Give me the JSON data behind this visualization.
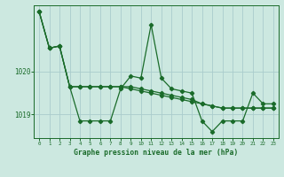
{
  "background_color": "#cce8e0",
  "grid_color": "#aacccc",
  "line_color": "#1a6b2a",
  "title": "Graphe pression niveau de la mer (hPa)",
  "xlim": [
    -0.5,
    23.5
  ],
  "ylim": [
    1018.45,
    1021.55
  ],
  "yticks": [
    1019.0,
    1020.0
  ],
  "xticks": [
    0,
    1,
    2,
    3,
    4,
    5,
    6,
    7,
    8,
    9,
    10,
    11,
    12,
    13,
    14,
    15,
    16,
    17,
    18,
    19,
    20,
    21,
    22,
    23
  ],
  "series1_x": [
    0,
    1,
    2,
    3,
    4,
    5,
    6,
    7,
    8,
    9,
    10,
    11,
    12,
    13,
    14,
    15,
    16,
    17,
    18,
    19,
    20,
    21,
    22,
    23
  ],
  "series1_y": [
    1021.4,
    1020.55,
    1020.6,
    1019.65,
    1018.85,
    1018.85,
    1018.85,
    1018.85,
    1019.6,
    1019.9,
    1019.85,
    1021.1,
    1019.85,
    1019.6,
    1019.55,
    1019.5,
    1018.85,
    1018.6,
    1018.85,
    1018.85,
    1018.85,
    1019.5,
    1019.25,
    1019.25
  ],
  "series2_x": [
    0,
    1,
    2,
    3,
    4,
    5,
    6,
    7,
    8,
    9,
    10,
    11,
    12,
    13,
    14,
    15,
    16,
    17,
    18,
    19,
    20,
    21,
    22,
    23
  ],
  "series2_y": [
    1021.4,
    1020.55,
    1020.6,
    1019.65,
    1019.65,
    1019.65,
    1019.65,
    1019.65,
    1019.65,
    1019.6,
    1019.55,
    1019.5,
    1019.45,
    1019.4,
    1019.35,
    1019.3,
    1019.25,
    1019.2,
    1019.15,
    1019.15,
    1019.15,
    1019.15,
    1019.15,
    1019.15
  ],
  "series3_x": [
    0,
    1,
    2,
    3,
    4,
    5,
    6,
    7,
    8,
    9,
    10,
    11,
    12,
    13,
    14,
    15,
    16,
    17,
    18,
    19,
    20,
    21,
    22,
    23
  ],
  "series3_y": [
    1021.4,
    1020.55,
    1020.6,
    1019.65,
    1019.65,
    1019.65,
    1019.65,
    1019.65,
    1019.65,
    1019.65,
    1019.6,
    1019.55,
    1019.5,
    1019.45,
    1019.4,
    1019.35,
    1019.25,
    1019.2,
    1019.15,
    1019.15,
    1019.15,
    1019.15,
    1019.15,
    1019.15
  ]
}
